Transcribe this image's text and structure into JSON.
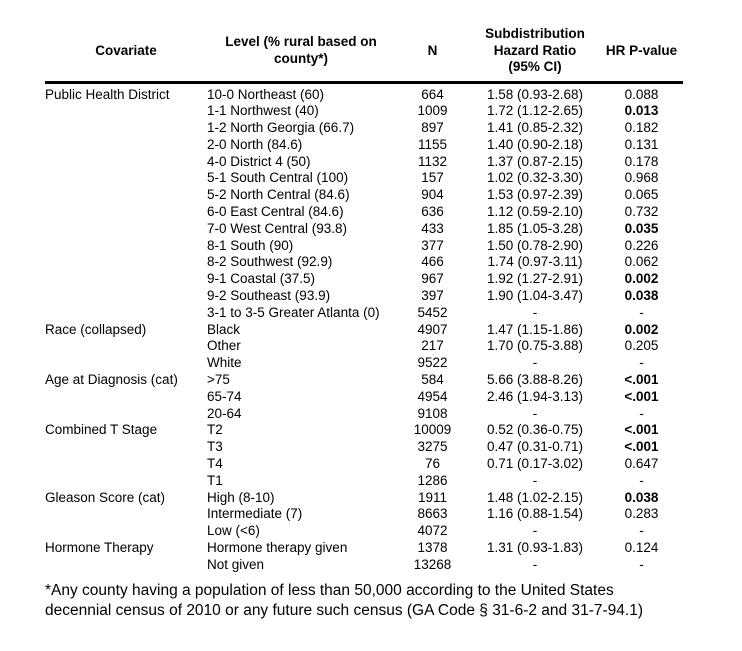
{
  "table": {
    "columns": [
      {
        "id": "covariate",
        "label": "Covariate"
      },
      {
        "id": "level",
        "label": "Level (% rural based on\ncounty*)"
      },
      {
        "id": "n",
        "label": "N"
      },
      {
        "id": "shr",
        "label": "Subdistribution\nHazard Ratio\n(95% CI)"
      },
      {
        "id": "p",
        "label": "HR P-value"
      }
    ],
    "rows": [
      {
        "covariate": "Public Health District",
        "level": "10-0 Northeast (60)",
        "n": "664",
        "shr": "1.58 (0.93-2.68)",
        "p": "0.088",
        "p_bold": false
      },
      {
        "covariate": "",
        "level": "1-1 Northwest (40)",
        "n": "1009",
        "shr": "1.72 (1.12-2.65)",
        "p": "0.013",
        "p_bold": true
      },
      {
        "covariate": "",
        "level": "1-2 North Georgia (66.7)",
        "n": "897",
        "shr": "1.41 (0.85-2.32)",
        "p": "0.182",
        "p_bold": false
      },
      {
        "covariate": "",
        "level": "2-0 North (84.6)",
        "n": "1155",
        "shr": "1.40 (0.90-2.18)",
        "p": "0.131",
        "p_bold": false
      },
      {
        "covariate": "",
        "level": "4-0 District 4 (50)",
        "n": "1132",
        "shr": "1.37 (0.87-2.15)",
        "p": "0.178",
        "p_bold": false
      },
      {
        "covariate": "",
        "level": "5-1 South Central (100)",
        "n": "157",
        "shr": "1.02 (0.32-3.30)",
        "p": "0.968",
        "p_bold": false
      },
      {
        "covariate": "",
        "level": "5-2 North Central (84.6)",
        "n": "904",
        "shr": "1.53 (0.97-2.39)",
        "p": "0.065",
        "p_bold": false
      },
      {
        "covariate": "",
        "level": "6-0 East Central (84.6)",
        "n": "636",
        "shr": "1.12 (0.59-2.10)",
        "p": "0.732",
        "p_bold": false
      },
      {
        "covariate": "",
        "level": "7-0 West Central (93.8)",
        "n": "433",
        "shr": "1.85 (1.05-3.28)",
        "p": "0.035",
        "p_bold": true
      },
      {
        "covariate": "",
        "level": "8-1 South (90)",
        "n": "377",
        "shr": "1.50 (0.78-2.90)",
        "p": "0.226",
        "p_bold": false
      },
      {
        "covariate": "",
        "level": "8-2 Southwest (92.9)",
        "n": "466",
        "shr": "1.74 (0.97-3.11)",
        "p": "0.062",
        "p_bold": false
      },
      {
        "covariate": "",
        "level": "9-1 Coastal (37.5)",
        "n": "967",
        "shr": "1.92 (1.27-2.91)",
        "p": "0.002",
        "p_bold": true
      },
      {
        "covariate": "",
        "level": "9-2 Southeast (93.9)",
        "n": "397",
        "shr": "1.90 (1.04-3.47)",
        "p": "0.038",
        "p_bold": true
      },
      {
        "covariate": "",
        "level": "3-1 to 3-5 Greater Atlanta (0)",
        "n": "5452",
        "shr": "-",
        "p": "-",
        "p_bold": false
      },
      {
        "covariate": "Race (collapsed)",
        "level": "Black",
        "n": "4907",
        "shr": "1.47 (1.15-1.86)",
        "p": "0.002",
        "p_bold": true
      },
      {
        "covariate": "",
        "level": "Other",
        "n": "217",
        "shr": "1.70 (0.75-3.88)",
        "p": "0.205",
        "p_bold": false
      },
      {
        "covariate": "",
        "level": "White",
        "n": "9522",
        "shr": "-",
        "p": "-",
        "p_bold": false
      },
      {
        "covariate": "Age at Diagnosis (cat)",
        "level": ">75",
        "n": "584",
        "shr": "5.66 (3.88-8.26)",
        "p": "<.001",
        "p_bold": true
      },
      {
        "covariate": "",
        "level": "65-74",
        "n": "4954",
        "shr": "2.46 (1.94-3.13)",
        "p": "<.001",
        "p_bold": true
      },
      {
        "covariate": "",
        "level": "20-64",
        "n": "9108",
        "shr": "-",
        "p": "-",
        "p_bold": false
      },
      {
        "covariate": "Combined T Stage",
        "level": "T2",
        "n": "10009",
        "shr": "0.52 (0.36-0.75)",
        "p": "<.001",
        "p_bold": true
      },
      {
        "covariate": "",
        "level": "T3",
        "n": "3275",
        "shr": "0.47 (0.31-0.71)",
        "p": "<.001",
        "p_bold": true
      },
      {
        "covariate": "",
        "level": "T4",
        "n": "76",
        "shr": "0.71 (0.17-3.02)",
        "p": "0.647",
        "p_bold": false
      },
      {
        "covariate": "",
        "level": "T1",
        "n": "1286",
        "shr": "-",
        "p": "-",
        "p_bold": false
      },
      {
        "covariate": "Gleason Score (cat)",
        "level": "High (8-10)",
        "n": "1911",
        "shr": "1.48 (1.02-2.15)",
        "p": "0.038",
        "p_bold": true
      },
      {
        "covariate": "",
        "level": "Intermediate (7)",
        "n": "8663",
        "shr": "1.16 (0.88-1.54)",
        "p": "0.283",
        "p_bold": false
      },
      {
        "covariate": "",
        "level": "Low (<6)",
        "n": "4072",
        "shr": "-",
        "p": "-",
        "p_bold": false
      },
      {
        "covariate": "Hormone Therapy",
        "level": "Hormone therapy given",
        "n": "1378",
        "shr": "1.31 (0.93-1.83)",
        "p": "0.124",
        "p_bold": false
      },
      {
        "covariate": "",
        "level": "Not given",
        "n": "13268",
        "shr": "-",
        "p": "-",
        "p_bold": false
      }
    ],
    "footnote": "*Any county having a population of less than 50,000 according to the United States\ndecennial census of 2010 or any future such census (GA Code § 31-6-2 and 31-7-94.1)"
  },
  "style": {
    "text_color": "#000000",
    "background_color": "#ffffff",
    "rule_color": "#000000"
  }
}
